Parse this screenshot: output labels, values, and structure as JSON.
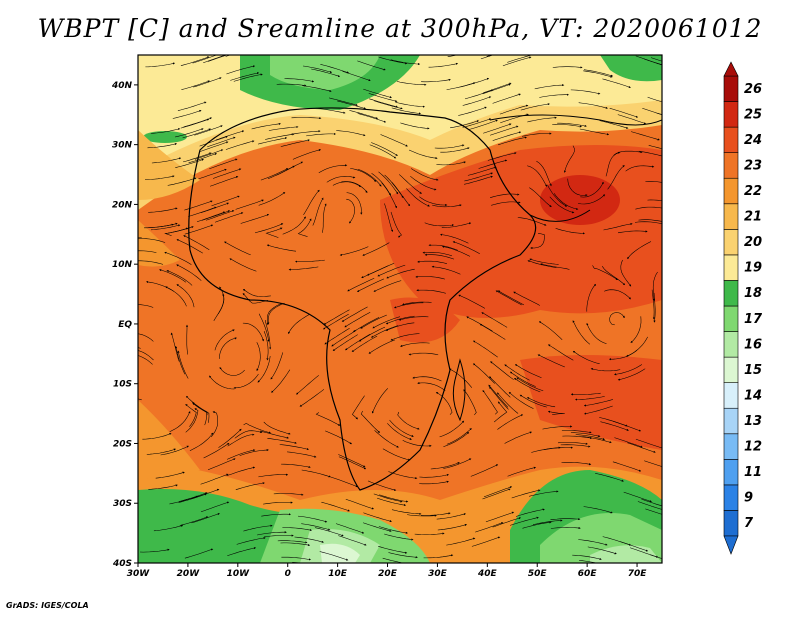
{
  "title": "WBPT [C] and Sreamline at 300hPa, VT: 2020061012",
  "credit": "GrADS: IGES/COLA",
  "lat_labels": [
    "40N",
    "30N",
    "20N",
    "10N",
    "EQ",
    "10S",
    "20S",
    "30S",
    "40S"
  ],
  "lat_values": [
    40,
    30,
    20,
    10,
    0,
    -10,
    -20,
    -30,
    -40
  ],
  "lon_labels": [
    "30W",
    "20W",
    "10W",
    "0",
    "10E",
    "20E",
    "30E",
    "40E",
    "50E",
    "60E",
    "70E"
  ],
  "lon_values": [
    -30,
    -20,
    -10,
    0,
    10,
    20,
    30,
    40,
    50,
    60,
    70
  ],
  "colorbar": {
    "levels": [
      "7",
      "9",
      "11",
      "12",
      "13",
      "14",
      "15",
      "16",
      "17",
      "18",
      "19",
      "20",
      "21",
      "22",
      "23",
      "24",
      "25",
      "26"
    ],
    "colors": [
      "#1e6ed2",
      "#2b82e6",
      "#4fa0f0",
      "#78bbf5",
      "#a8d4f7",
      "#d8f0fb",
      "#dcf7d2",
      "#b2eaa4",
      "#7fd870",
      "#3fb94a",
      "#fcea96",
      "#fad270",
      "#f7b84c",
      "#f4962e",
      "#ef7426",
      "#e8501e",
      "#d22812",
      "#a80d0a"
    ]
  },
  "legend": {
    "variable": "WBPT",
    "unit": "C",
    "level": "300hPa",
    "valid_time": "2020061012"
  },
  "colors": {
    "warmest": "#a80d0a",
    "warm_band": "#ef7426",
    "cool_band": "#3fb94a",
    "coldest": "#1e6ed2",
    "streamline": "#000000"
  }
}
